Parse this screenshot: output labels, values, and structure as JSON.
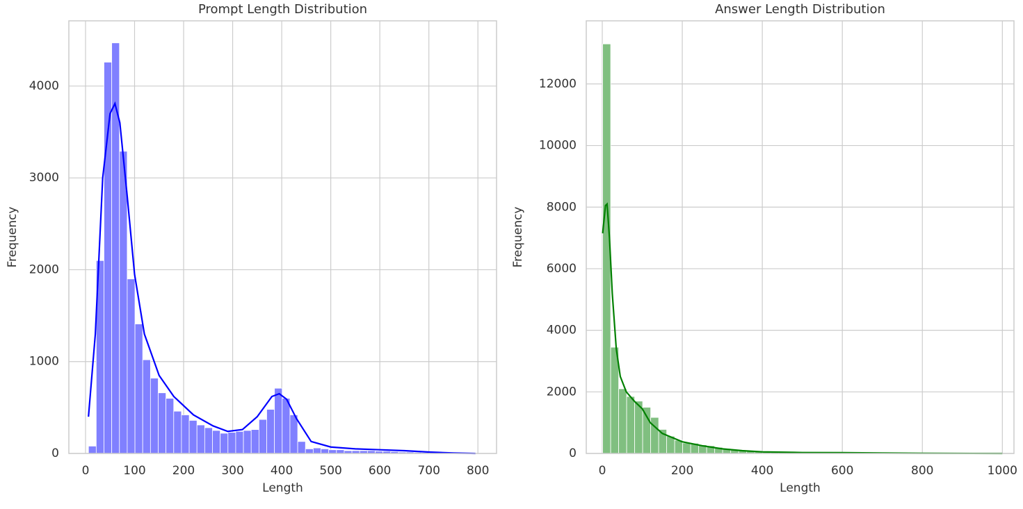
{
  "chart_data": [
    {
      "type": "histogram",
      "title": "Prompt Length Distribution",
      "x_label": "Length",
      "y_label": "Frequency",
      "bins": [
        6,
        21.8,
        37.6,
        53.4,
        69.2,
        85,
        100.8,
        116.6,
        132.4,
        148.2,
        164,
        179.8,
        195.6,
        211.4,
        227.2,
        243,
        258.8,
        274.6,
        290.4,
        306.2,
        322,
        337.8,
        353.6,
        369.4,
        385.2,
        401,
        416.8,
        432.6,
        448.4,
        464.2,
        480,
        495.8,
        511.6,
        527.4,
        543.2,
        559,
        574.8,
        590.6,
        606.4,
        622.2,
        638,
        653.8,
        669.6,
        685.4,
        701.2,
        717,
        732.8,
        748.6,
        764.4,
        780.2,
        796
      ],
      "values": [
        80,
        2100,
        4260,
        4470,
        3290,
        1900,
        1410,
        1020,
        820,
        660,
        600,
        460,
        420,
        360,
        310,
        280,
        250,
        220,
        230,
        240,
        250,
        260,
        370,
        480,
        710,
        600,
        420,
        130,
        50,
        60,
        50,
        40,
        40,
        30,
        30,
        30,
        30,
        25,
        25,
        20,
        15,
        15,
        12,
        10,
        10,
        8,
        8,
        5,
        5,
        5
      ],
      "color": "#8080ff",
      "kde": {
        "color": "#0000ff",
        "x": [
          6,
          20,
          35,
          50,
          60,
          70,
          85,
          100,
          120,
          150,
          180,
          220,
          260,
          290,
          320,
          350,
          380,
          395,
          410,
          430,
          460,
          500,
          550,
          600,
          650,
          700,
          750,
          795
        ],
        "values": [
          400,
          1300,
          3000,
          3700,
          3810,
          3600,
          2800,
          1950,
          1300,
          850,
          620,
          420,
          300,
          240,
          260,
          400,
          620,
          650,
          590,
          380,
          130,
          70,
          50,
          40,
          30,
          15,
          5,
          0
        ]
      },
      "xlim": [
        -34,
        838
      ],
      "ylim": [
        0,
        4710
      ],
      "xticks": [
        0,
        100,
        200,
        300,
        400,
        500,
        600,
        700,
        800
      ],
      "yticks": [
        0,
        1000,
        2000,
        3000,
        4000
      ],
      "grid": true
    },
    {
      "type": "histogram",
      "title": "Answer Length Distribution",
      "x_label": "Length",
      "y_label": "Frequency",
      "bins": [
        1,
        21,
        41,
        61,
        81,
        101,
        121,
        141,
        161,
        181,
        201,
        221,
        241,
        261,
        281,
        301,
        321,
        341,
        361,
        381,
        401,
        421,
        441,
        461,
        481,
        501,
        521,
        541,
        561,
        581,
        601,
        621,
        641,
        661,
        681,
        701,
        721,
        741,
        761,
        781,
        801,
        821,
        841,
        861,
        881,
        901,
        921,
        941,
        961,
        981,
        1001
      ],
      "values": [
        13300,
        3450,
        2100,
        1850,
        1700,
        1500,
        1170,
        780,
        560,
        430,
        340,
        330,
        280,
        250,
        200,
        160,
        130,
        110,
        90,
        70,
        60,
        50,
        45,
        40,
        35,
        30,
        30,
        30,
        25,
        25,
        20,
        20,
        20,
        20,
        15,
        15,
        15,
        12,
        10,
        10,
        10,
        8,
        8,
        5,
        5,
        5,
        5,
        5,
        5,
        5
      ],
      "color": "#80bf80",
      "kde": {
        "color": "#008000",
        "x": [
          1,
          8,
          12,
          18,
          25,
          35,
          45,
          60,
          80,
          100,
          120,
          150,
          200,
          250,
          300,
          350,
          400,
          500,
          600,
          700,
          800,
          1000
        ],
        "values": [
          7150,
          8050,
          8100,
          7000,
          5200,
          3400,
          2500,
          2000,
          1700,
          1450,
          1000,
          650,
          380,
          250,
          150,
          90,
          50,
          30,
          25,
          15,
          5,
          0
        ]
      },
      "xlim": [
        -40,
        1029
      ],
      "ylim": [
        0,
        14050
      ],
      "xticks": [
        0,
        200,
        400,
        600,
        800,
        1000
      ],
      "yticks": [
        0,
        2000,
        4000,
        6000,
        8000,
        10000,
        12000
      ],
      "grid": true
    }
  ]
}
